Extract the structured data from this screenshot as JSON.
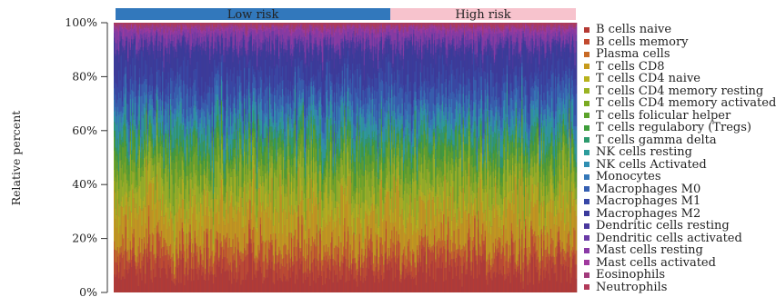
{
  "chart_data": {
    "type": "bar",
    "subtype": "stacked-percent",
    "title": "",
    "xlabel": "",
    "ylabel": "Relative percent",
    "ylim": [
      0,
      100
    ],
    "yticks": [
      "0%",
      "20%",
      "40%",
      "60%",
      "80%",
      "100%"
    ],
    "grid": false,
    "legend_position": "right",
    "groups": [
      {
        "label": "Low risk",
        "color": "#3278bc",
        "n_samples": 240
      },
      {
        "label": "High risk",
        "color": "#f7c3cd",
        "n_samples": 162
      }
    ],
    "cell_types": [
      {
        "name": "B cells naive",
        "color": "#b53a34"
      },
      {
        "name": "B cells memory",
        "color": "#c24a2f"
      },
      {
        "name": "Plasma cells",
        "color": "#c86a26"
      },
      {
        "name": "T cells CD8",
        "color": "#c79a1c"
      },
      {
        "name": "T cells CD4 naive",
        "color": "#b8b21c"
      },
      {
        "name": "T cells CD4 memory resting",
        "color": "#9ab323"
      },
      {
        "name": "T cells CD4 memory activated",
        "color": "#7aaa22"
      },
      {
        "name": "T cells folicular helper",
        "color": "#5ca32b"
      },
      {
        "name": "T cells regulabory (Tregs)",
        "color": "#3f9e3b"
      },
      {
        "name": "T cells gamma delta",
        "color": "#2e9b6e"
      },
      {
        "name": "NK cells resting",
        "color": "#2c9c9c"
      },
      {
        "name": "NK cells Activated",
        "color": "#2f8fb2"
      },
      {
        "name": "Monocytes",
        "color": "#3478b8"
      },
      {
        "name": "Macrophages M0",
        "color": "#355fb1"
      },
      {
        "name": "Macrophages M1",
        "color": "#3747a6"
      },
      {
        "name": "Macrophages M2",
        "color": "#3a3a9c"
      },
      {
        "name": "Dendritic cells resting",
        "color": "#4a389e"
      },
      {
        "name": "Dendritic cells activated",
        "color": "#6a3aa6"
      },
      {
        "name": "Mast cells resting",
        "color": "#8a3aa6"
      },
      {
        "name": "Mast cells activated",
        "color": "#a0399e"
      },
      {
        "name": "Eosinophils",
        "color": "#a23a7c"
      },
      {
        "name": "Neutrophils",
        "color": "#b23a5a"
      }
    ],
    "mean_percent": [
      8,
      5,
      4,
      12,
      5,
      7,
      4,
      5,
      3,
      3,
      4,
      3,
      3,
      6,
      5,
      9,
      2,
      2,
      3,
      1,
      1,
      1
    ]
  }
}
